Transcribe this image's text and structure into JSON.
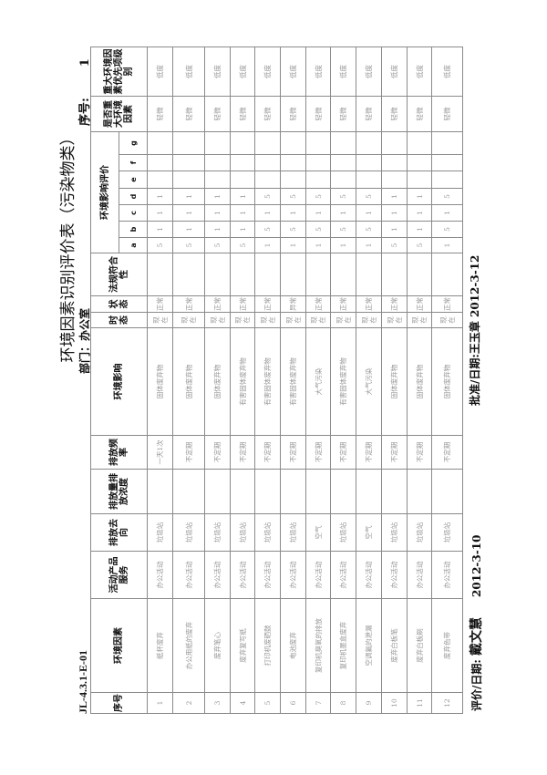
{
  "title": "环境因素识别评价表（污染物类）",
  "department": "部门：办公室",
  "doc_code": "JL-4.3.1-E-01",
  "sequence": {
    "label": "序号:",
    "value": "1"
  },
  "headers": {
    "no": "序号",
    "factor": "环境因素",
    "activity": "活动产品服务",
    "destination": "排放去向",
    "amount": "排放量排放浓度",
    "frequency": "排放频率",
    "impact": "环境影响",
    "tense": "时态",
    "state": "状态",
    "compliance": "法规符合性",
    "evaluation": "环境影响评价",
    "letters": [
      "a",
      "b",
      "c",
      "d",
      "e",
      "f",
      "g"
    ],
    "significant": "是否重大环境因素",
    "priority": "重大环境因素优先项级别"
  },
  "rows": [
    {
      "no": "1",
      "factor": "纸杯废弃",
      "activity": "办公活动",
      "destination": "垃圾站",
      "amount": "",
      "frequency": "一天1次",
      "impact": "固体废弃物",
      "tense": "现在",
      "state": "正常",
      "compliance": "",
      "scores": [
        "5",
        "1",
        "1",
        "1",
        "",
        "",
        ""
      ],
      "significant": "轻微",
      "priority": "低度"
    },
    {
      "no": "2",
      "factor": "办公用纸的废弃",
      "activity": "办公活动",
      "destination": "垃圾站",
      "amount": "",
      "frequency": "不定期",
      "impact": "固体废弃物",
      "tense": "现在",
      "state": "正常",
      "compliance": "",
      "scores": [
        "5",
        "1",
        "1",
        "1",
        "",
        "",
        ""
      ],
      "significant": "轻微",
      "priority": "低度"
    },
    {
      "no": "3",
      "factor": "废弃笔心",
      "activity": "办公活动",
      "destination": "垃圾站",
      "amount": "",
      "frequency": "不定期",
      "impact": "固体废弃物",
      "tense": "现在",
      "state": "正常",
      "compliance": "",
      "scores": [
        "5",
        "1",
        "1",
        "1",
        "",
        "",
        ""
      ],
      "significant": "轻微",
      "priority": "低度"
    },
    {
      "no": "4",
      "factor": "废弃复写纸",
      "activity": "办公活动",
      "destination": "垃圾站",
      "amount": "",
      "frequency": "不定期",
      "impact": "有害固体废弃物",
      "tense": "现在",
      "state": "正常",
      "compliance": "",
      "scores": [
        "5",
        "1",
        "1",
        "1",
        "",
        "",
        ""
      ],
      "significant": "轻微",
      "priority": "低度"
    },
    {
      "no": "5",
      "factor": "打印机废硒鼓",
      "activity": "办公活动",
      "destination": "垃圾站",
      "amount": "",
      "frequency": "不定期",
      "impact": "有害固体废弃物",
      "tense": "现在",
      "state": "正常",
      "compliance": "",
      "scores": [
        "1",
        "5",
        "1",
        "5",
        "",
        "",
        ""
      ],
      "significant": "轻微",
      "priority": "低度"
    },
    {
      "no": "6",
      "factor": "电池废弃",
      "activity": "办公活动",
      "destination": "垃圾站",
      "amount": "",
      "frequency": "不定期",
      "impact": "有害固体废弃物",
      "tense": "现在",
      "state": "异常",
      "compliance": "",
      "scores": [
        "1",
        "5",
        "1",
        "5",
        "",
        "",
        ""
      ],
      "significant": "轻微",
      "priority": "低度"
    },
    {
      "no": "7",
      "factor": "复印机臭氧的排放",
      "activity": "办公活动",
      "destination": "空气",
      "amount": "",
      "frequency": "不定期",
      "impact": "大气污染",
      "tense": "现在",
      "state": "正常",
      "compliance": "",
      "scores": [
        "1",
        "5",
        "1",
        "5",
        "",
        "",
        ""
      ],
      "significant": "轻微",
      "priority": "低度"
    },
    {
      "no": "8",
      "factor": "复印机墨盒废弃",
      "activity": "办公活动",
      "destination": "垃圾站",
      "amount": "",
      "frequency": "不定期",
      "impact": "有害固体废弃物",
      "tense": "现在",
      "state": "正常",
      "compliance": "",
      "scores": [
        "1",
        "5",
        "1",
        "5",
        "",
        "",
        ""
      ],
      "significant": "轻微",
      "priority": "低度"
    },
    {
      "no": "9",
      "factor": "空调氟的泄漏",
      "activity": "办公活动",
      "destination": "空气",
      "amount": "",
      "frequency": "不定期",
      "impact": "大气污染",
      "tense": "现在",
      "state": "正常",
      "compliance": "",
      "scores": [
        "1",
        "5",
        "1",
        "5",
        "",
        "",
        ""
      ],
      "significant": "轻微",
      "priority": "低度"
    },
    {
      "no": "10",
      "factor": "废弃白板笔",
      "activity": "办公活动",
      "destination": "垃圾站",
      "amount": "",
      "frequency": "不定期",
      "impact": "固体废弃物",
      "tense": "现在",
      "state": "正常",
      "compliance": "",
      "scores": [
        "5",
        "1",
        "1",
        "1",
        "",
        "",
        ""
      ],
      "significant": "轻微",
      "priority": "低度"
    },
    {
      "no": "11",
      "factor": "废弃白板刷",
      "activity": "办公活动",
      "destination": "垃圾站",
      "amount": "",
      "frequency": "不定期",
      "impact": "固体废弃物",
      "tense": "现在",
      "state": "正常",
      "compliance": "",
      "scores": [
        "5",
        "1",
        "1",
        "1",
        "",
        "",
        ""
      ],
      "significant": "轻微",
      "priority": "低度"
    },
    {
      "no": "12",
      "factor": "废弃色带",
      "activity": "办公活动",
      "destination": "垃圾站",
      "amount": "",
      "frequency": "不定期",
      "impact": "固体废弃物",
      "tense": "现在",
      "state": "正常",
      "compliance": "",
      "scores": [
        "1",
        "5",
        "1",
        "5",
        "",
        "",
        ""
      ],
      "significant": "轻微",
      "priority": "低度"
    }
  ],
  "footer": {
    "evaluator_label": "评价/日期:",
    "evaluator": "戴文慧",
    "evaluation_date": "2012-3-10",
    "approval": "批准/日期:王玉章  2012-3-12"
  }
}
